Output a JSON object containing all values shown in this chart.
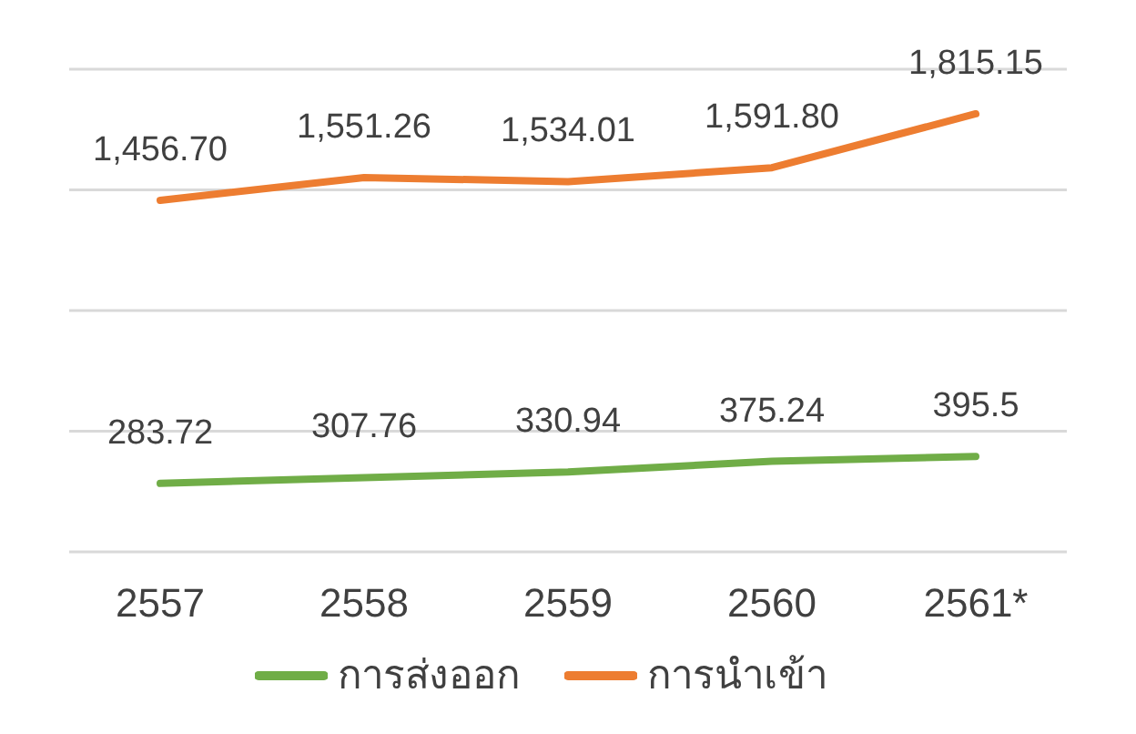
{
  "chart_data": {
    "type": "line",
    "categories": [
      "2557",
      "2558",
      "2559",
      "2560",
      "2561*"
    ],
    "series": [
      {
        "name": "การส่งออก",
        "color": "#70ad47",
        "values": [
          283.72,
          307.76,
          330.94,
          375.24,
          395.5
        ],
        "value_labels": [
          "283.72",
          "307.76",
          "330.94",
          "375.24",
          "395.5"
        ]
      },
      {
        "name": "การนำเข้า",
        "color": "#ed7d31",
        "values": [
          1456.7,
          1551.26,
          1534.01,
          1591.8,
          1815.15
        ],
        "value_labels": [
          "1,456.70",
          "1,551.26",
          "1,534.01",
          "1,591.80",
          "1,815.15"
        ]
      }
    ],
    "ylim": [
      0,
      2000
    ],
    "tick_labels": "x",
    "grid": "y",
    "legend": "bottom",
    "marker": "none",
    "line_style": "solid"
  }
}
